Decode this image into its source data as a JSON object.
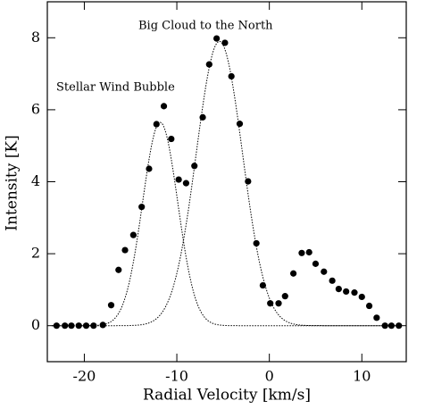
{
  "chart_data": {
    "type": "scatter",
    "xlabel": "Radial Velocity [km/s]",
    "ylabel": "Intensity [K]",
    "annotations": [
      "Big Cloud to the North",
      "Stellar Wind Bubble"
    ],
    "x": [
      -23.0,
      -22.1,
      -21.4,
      -20.6,
      -19.8,
      -19.0,
      -18.0,
      -17.1,
      -16.3,
      -15.6,
      -14.7,
      -13.8,
      -13.0,
      -12.2,
      -11.4,
      -10.6,
      -9.8,
      -9.0,
      -8.1,
      -7.2,
      -6.5,
      -5.7,
      -4.8,
      -4.1,
      -3.2,
      -2.3,
      -1.4,
      -0.7,
      0.1,
      1.0,
      1.7,
      2.6,
      3.5,
      4.3,
      5.0,
      5.9,
      6.8,
      7.5,
      8.3,
      9.2,
      10.0,
      10.8,
      11.6,
      12.5,
      13.2,
      14.0
    ],
    "values": [
      0,
      0,
      0,
      0,
      0,
      0,
      0.02,
      0.57,
      1.55,
      2.1,
      2.52,
      3.3,
      4.36,
      5.6,
      6.1,
      5.19,
      4.06,
      3.96,
      4.44,
      5.79,
      7.26,
      7.98,
      7.86,
      6.93,
      5.61,
      4.01,
      2.29,
      1.12,
      0.62,
      0.62,
      0.82,
      1.45,
      2.02,
      2.04,
      1.72,
      1.5,
      1.25,
      1.02,
      0.95,
      0.92,
      0.8,
      0.55,
      0.22,
      0,
      0,
      0
    ],
    "color": "#000000",
    "fits": [
      {
        "amplitude": 5.65,
        "center": -11.8,
        "sigma": 1.9
      },
      {
        "amplitude": 7.9,
        "center": -5.4,
        "sigma": 2.5
      }
    ],
    "xlim": [
      -24,
      14.8
    ],
    "ylim": [
      -1,
      9
    ],
    "xticks": [
      -20,
      -10,
      0,
      10
    ],
    "yticks": [
      0,
      2,
      4,
      6,
      8
    ],
    "grid": false
  }
}
